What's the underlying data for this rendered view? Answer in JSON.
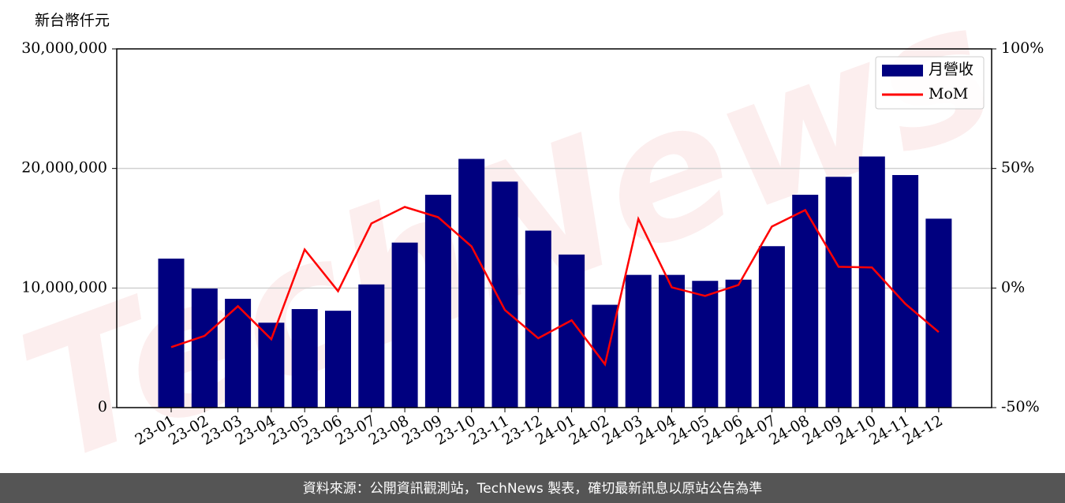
{
  "chart_data": {
    "type": "bar_line",
    "y_label": "新台幣仟元",
    "watermark": "TechNews",
    "source": "資料來源：公開資訊觀測站，TechNews 製表，確切最新訊息以原站公告為準",
    "categories": [
      "23-01",
      "23-02",
      "23-03",
      "23-04",
      "23-05",
      "23-06",
      "23-07",
      "23-08",
      "23-09",
      "23-10",
      "23-11",
      "23-12",
      "24-01",
      "24-02",
      "24-03",
      "24-04",
      "24-05",
      "24-06",
      "24-07",
      "24-08",
      "24-09",
      "24-10",
      "24-11",
      "24-12"
    ],
    "series": [
      {
        "name": "月營收",
        "color": "#00007f",
        "type": "bar",
        "values": [
          12460000,
          9960000,
          9100000,
          7100000,
          8240000,
          8100000,
          10300000,
          13800000,
          17800000,
          20800000,
          18900000,
          14800000,
          12800000,
          8600000,
          11100000,
          11100000,
          10600000,
          10700000,
          13500000,
          17800000,
          19300000,
          21000000,
          19450000,
          15800000
        ]
      },
      {
        "name": "MoM",
        "color": "#ff0000",
        "type": "line",
        "axis": "y2",
        "values": [
          -24.7,
          -20,
          -7.6,
          -21.4,
          16.1,
          -1.3,
          27,
          33.9,
          29.6,
          17.4,
          -9.2,
          -21,
          -13.5,
          -31.9,
          28.9,
          0.3,
          -3.3,
          1.3,
          25.7,
          32.6,
          8.9,
          8.6,
          -6.6,
          -18.4
        ]
      }
    ],
    "ylim": [
      0,
      30000000
    ],
    "yticks": [
      0,
      {
        "value": 10000000,
        "label": "10,000,000"
      },
      {
        "value": 20000000,
        "label": "20,000,000"
      },
      {
        "value": 30000000,
        "label": "30,000,000"
      }
    ],
    "y2lim": [
      -50,
      100
    ],
    "y2ticks": [
      {
        "value": -50,
        "label": "-50%"
      },
      {
        "value": 0,
        "label": "0%"
      },
      {
        "value": 50,
        "label": "50%"
      },
      {
        "value": 100,
        "label": "100%"
      }
    ],
    "grid": true,
    "legend": "upper right"
  }
}
